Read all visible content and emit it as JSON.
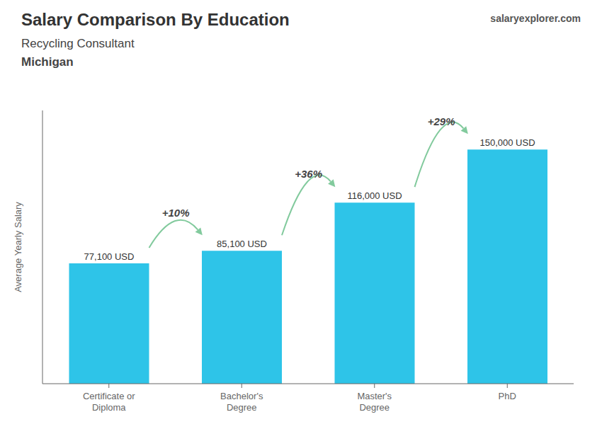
{
  "chart_data": {
    "type": "bar",
    "title": "Salary Comparison By Education",
    "subtitle": "Recycling Consultant",
    "location": "Michigan",
    "website": "salaryexplorer.com",
    "ylabel": "Average Yearly Salary",
    "categories": [
      "Certificate or\nDiploma",
      "Bachelor's\nDegree",
      "Master's\nDegree",
      "PhD"
    ],
    "values": [
      77100,
      85100,
      116000,
      150000
    ],
    "value_labels": [
      "77,100 USD",
      "85,100 USD",
      "116,000 USD",
      "150,000 USD"
    ],
    "data_labels": true,
    "annotations": [
      "+10%",
      "+36%",
      "+29%"
    ],
    "color": "#2EC4E8",
    "ylim": [
      0,
      175000
    ],
    "tick_labels": "x",
    "grid": false
  }
}
